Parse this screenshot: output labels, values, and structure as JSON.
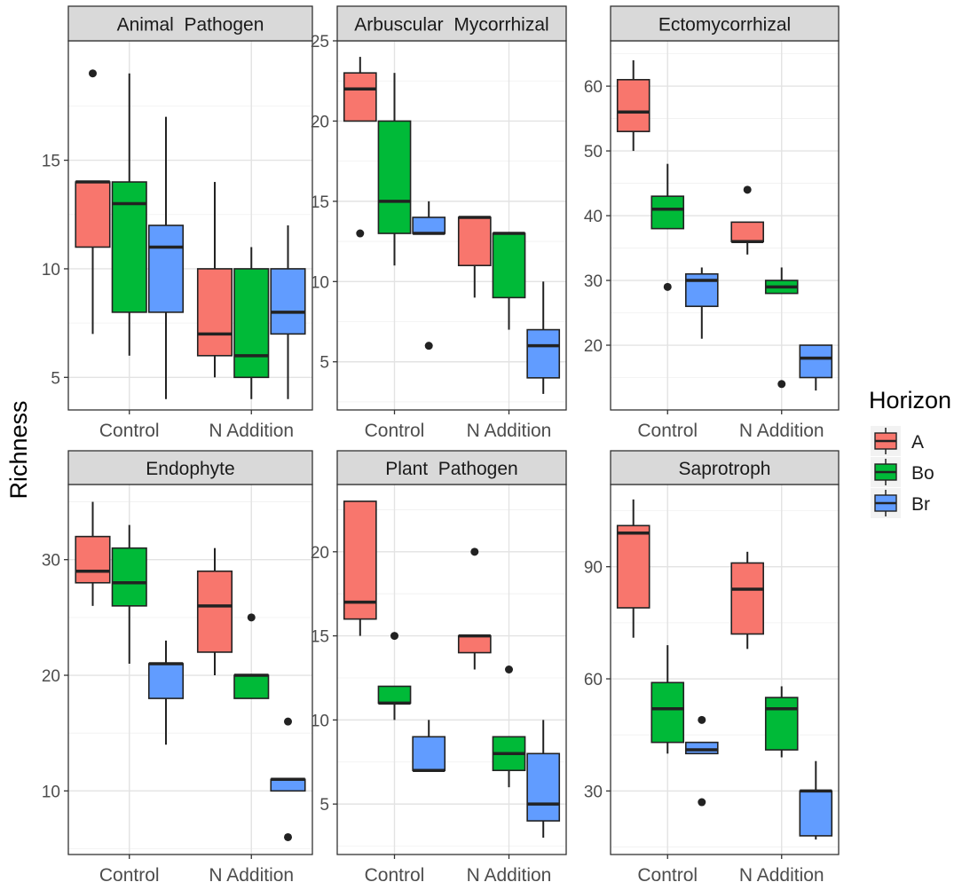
{
  "chart_data": {
    "type": "boxplot",
    "ylabel": "Richness",
    "xlabel": "",
    "categories": [
      "Control",
      "N Addition"
    ],
    "legend": {
      "title": "Horizon",
      "position": "right",
      "entries": [
        {
          "label": "A",
          "color": "#F8766D"
        },
        {
          "label": "Bo",
          "color": "#00BA38"
        },
        {
          "label": "Br",
          "color": "#619CFF"
        }
      ]
    },
    "grid": true,
    "panels": [
      {
        "title": "Animal  Pathogen",
        "ylim": [
          3.5,
          20.5
        ],
        "yticks": [
          5,
          10,
          15
        ],
        "boxes": [
          {
            "category": "Control",
            "horizon": "A",
            "lower": 7,
            "q1": 11,
            "median": 14,
            "q3": 14,
            "upper": 14,
            "outliers": [
              19
            ]
          },
          {
            "category": "Control",
            "horizon": "Bo",
            "lower": 6,
            "q1": 8,
            "median": 13,
            "q3": 14,
            "upper": 19,
            "outliers": []
          },
          {
            "category": "Control",
            "horizon": "Br",
            "lower": 4,
            "q1": 8,
            "median": 11,
            "q3": 12,
            "upper": 17,
            "outliers": []
          },
          {
            "category": "N Addition",
            "horizon": "A",
            "lower": 5,
            "q1": 6,
            "median": 7,
            "q3": 10,
            "upper": 14,
            "outliers": []
          },
          {
            "category": "N Addition",
            "horizon": "Bo",
            "lower": 4,
            "q1": 5,
            "median": 6,
            "q3": 10,
            "upper": 11,
            "outliers": []
          },
          {
            "category": "N Addition",
            "horizon": "Br",
            "lower": 4,
            "q1": 7,
            "median": 8,
            "q3": 10,
            "upper": 12,
            "outliers": []
          }
        ]
      },
      {
        "title": "Arbuscular  Mycorrhizal",
        "ylim": [
          2.0,
          25.0
        ],
        "yticks": [
          5,
          10,
          15,
          20,
          25
        ],
        "boxes": [
          {
            "category": "Control",
            "horizon": "A",
            "lower": 20,
            "q1": 20,
            "median": 22,
            "q3": 23,
            "upper": 24,
            "outliers": [
              13
            ]
          },
          {
            "category": "Control",
            "horizon": "Bo",
            "lower": 11,
            "q1": 13,
            "median": 15,
            "q3": 20,
            "upper": 23,
            "outliers": []
          },
          {
            "category": "Control",
            "horizon": "Br",
            "lower": 13,
            "q1": 13,
            "median": 13,
            "q3": 14,
            "upper": 15,
            "outliers": [
              6
            ]
          },
          {
            "category": "N Addition",
            "horizon": "A",
            "lower": 9,
            "q1": 11,
            "median": 14,
            "q3": 14,
            "upper": 14,
            "outliers": []
          },
          {
            "category": "N Addition",
            "horizon": "Bo",
            "lower": 7,
            "q1": 9,
            "median": 13,
            "q3": 13,
            "upper": 13,
            "outliers": []
          },
          {
            "category": "N Addition",
            "horizon": "Br",
            "lower": 3,
            "q1": 4,
            "median": 6,
            "q3": 7,
            "upper": 10,
            "outliers": []
          }
        ]
      },
      {
        "title": "Ectomycorrhizal",
        "ylim": [
          10.0,
          67.0
        ],
        "yticks": [
          20,
          30,
          40,
          50,
          60
        ],
        "boxes": [
          {
            "category": "Control",
            "horizon": "A",
            "lower": 50,
            "q1": 53,
            "median": 56,
            "q3": 61,
            "upper": 64,
            "outliers": []
          },
          {
            "category": "Control",
            "horizon": "Bo",
            "lower": 38,
            "q1": 38,
            "median": 41,
            "q3": 43,
            "upper": 48,
            "outliers": [
              29
            ]
          },
          {
            "category": "Control",
            "horizon": "Br",
            "lower": 21,
            "q1": 26,
            "median": 30,
            "q3": 31,
            "upper": 32,
            "outliers": []
          },
          {
            "category": "N Addition",
            "horizon": "A",
            "lower": 34,
            "q1": 36,
            "median": 36,
            "q3": 39,
            "upper": 39,
            "outliers": [
              44
            ]
          },
          {
            "category": "N Addition",
            "horizon": "Bo",
            "lower": 28,
            "q1": 28,
            "median": 29,
            "q3": 30,
            "upper": 32,
            "outliers": [
              14
            ]
          },
          {
            "category": "N Addition",
            "horizon": "Br",
            "lower": 13,
            "q1": 15,
            "median": 18,
            "q3": 20,
            "upper": 20,
            "outliers": []
          }
        ]
      },
      {
        "title": "Endophyte",
        "ylim": [
          4.5,
          36.5
        ],
        "yticks": [
          10,
          20,
          30
        ],
        "boxes": [
          {
            "category": "Control",
            "horizon": "A",
            "lower": 26,
            "q1": 28,
            "median": 29,
            "q3": 32,
            "upper": 35,
            "outliers": []
          },
          {
            "category": "Control",
            "horizon": "Bo",
            "lower": 21,
            "q1": 26,
            "median": 28,
            "q3": 31,
            "upper": 33,
            "outliers": []
          },
          {
            "category": "Control",
            "horizon": "Br",
            "lower": 14,
            "q1": 18,
            "median": 21,
            "q3": 21,
            "upper": 23,
            "outliers": []
          },
          {
            "category": "N Addition",
            "horizon": "A",
            "lower": 20,
            "q1": 22,
            "median": 26,
            "q3": 29,
            "upper": 31,
            "outliers": []
          },
          {
            "category": "N Addition",
            "horizon": "Bo",
            "lower": 18,
            "q1": 18,
            "median": 20,
            "q3": 20,
            "upper": 20,
            "outliers": [
              25
            ]
          },
          {
            "category": "N Addition",
            "horizon": "Br",
            "lower": 10,
            "q1": 10,
            "median": 11,
            "q3": 11,
            "upper": 11,
            "outliers": [
              16,
              6
            ]
          }
        ]
      },
      {
        "title": "Plant  Pathogen",
        "ylim": [
          2.0,
          24.0
        ],
        "yticks": [
          5,
          10,
          15,
          20
        ],
        "boxes": [
          {
            "category": "Control",
            "horizon": "A",
            "lower": 15,
            "q1": 16,
            "median": 17,
            "q3": 23,
            "upper": 23,
            "outliers": []
          },
          {
            "category": "Control",
            "horizon": "Bo",
            "lower": 10,
            "q1": 11,
            "median": 11,
            "q3": 12,
            "upper": 12,
            "outliers": [
              15
            ]
          },
          {
            "category": "Control",
            "horizon": "Br",
            "lower": 7,
            "q1": 7,
            "median": 7,
            "q3": 9,
            "upper": 10,
            "outliers": []
          },
          {
            "category": "N Addition",
            "horizon": "A",
            "lower": 13,
            "q1": 14,
            "median": 15,
            "q3": 15,
            "upper": 15,
            "outliers": [
              20
            ]
          },
          {
            "category": "N Addition",
            "horizon": "Bo",
            "lower": 6,
            "q1": 7,
            "median": 8,
            "q3": 9,
            "upper": 9,
            "outliers": [
              13
            ]
          },
          {
            "category": "N Addition",
            "horizon": "Br",
            "lower": 3,
            "q1": 4,
            "median": 5,
            "q3": 8,
            "upper": 10,
            "outliers": []
          }
        ]
      },
      {
        "title": "Saprotroph",
        "ylim": [
          13.0,
          112.0
        ],
        "yticks": [
          30,
          60,
          90
        ],
        "boxes": [
          {
            "category": "Control",
            "horizon": "A",
            "lower": 71,
            "q1": 79,
            "median": 99,
            "q3": 101,
            "upper": 108,
            "outliers": []
          },
          {
            "category": "Control",
            "horizon": "Bo",
            "lower": 40,
            "q1": 43,
            "median": 52,
            "q3": 59,
            "upper": 69,
            "outliers": []
          },
          {
            "category": "Control",
            "horizon": "Br",
            "lower": 40,
            "q1": 40,
            "median": 41,
            "q3": 43,
            "upper": 43,
            "outliers": [
              49,
              27
            ]
          },
          {
            "category": "N Addition",
            "horizon": "A",
            "lower": 68,
            "q1": 72,
            "median": 84,
            "q3": 91,
            "upper": 94,
            "outliers": []
          },
          {
            "category": "N Addition",
            "horizon": "Bo",
            "lower": 39,
            "q1": 41,
            "median": 52,
            "q3": 55,
            "upper": 58,
            "outliers": []
          },
          {
            "category": "N Addition",
            "horizon": "Br",
            "lower": 17,
            "q1": 18,
            "median": 30,
            "q3": 30,
            "upper": 38,
            "outliers": []
          }
        ]
      }
    ]
  }
}
